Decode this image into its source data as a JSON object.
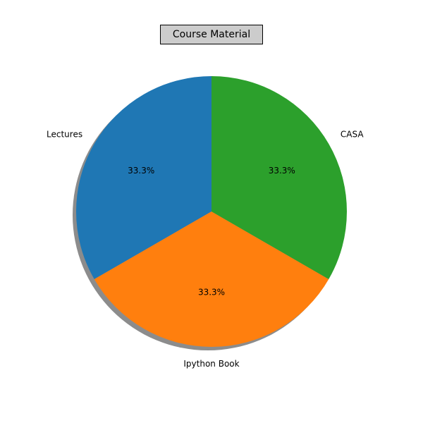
{
  "chart_data": {
    "type": "pie",
    "title": "Course Material",
    "labels": [
      "Lectures",
      "Ipython Book",
      "CASA"
    ],
    "values": [
      33.3,
      33.3,
      33.3
    ],
    "percent_labels": [
      "33.3%",
      "33.3%",
      "33.3%"
    ],
    "colors": [
      "#1f77b4",
      "#ff7f0e",
      "#2ca02c"
    ],
    "shadow": true,
    "start_angle_deg": 90,
    "direction": "counterclockwise"
  }
}
